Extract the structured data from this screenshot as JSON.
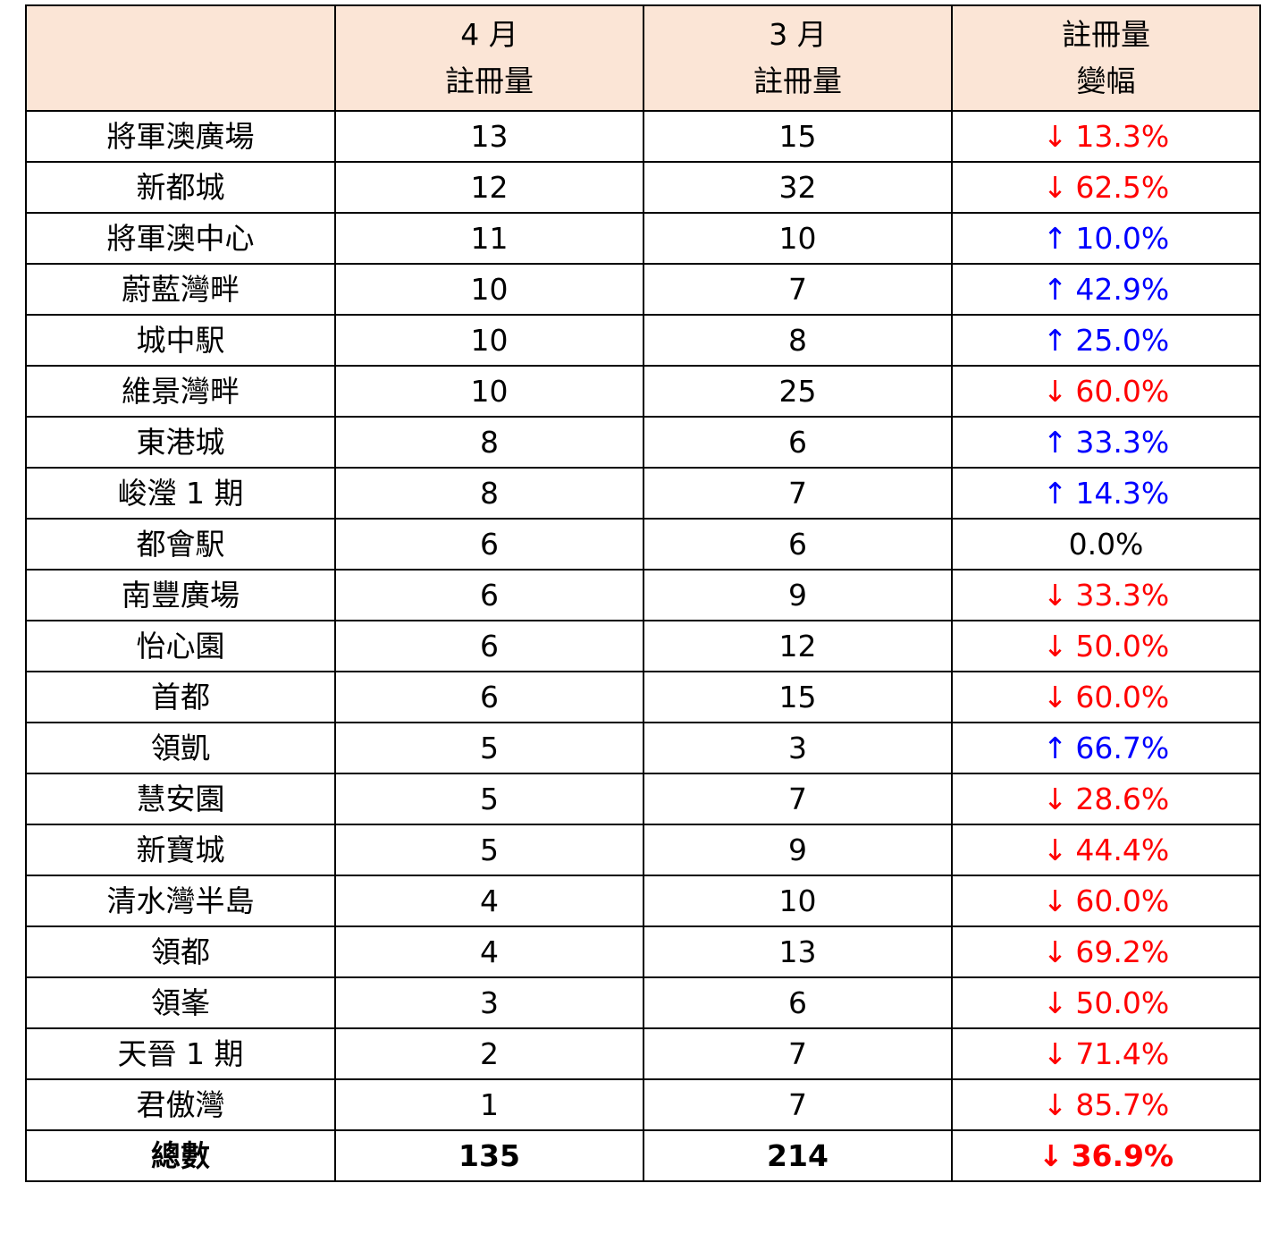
{
  "table": {
    "title_semantic": "monthly-registration-volume-table",
    "header": {
      "blank": "",
      "col_apr": {
        "line1": "4 月",
        "line2": "註冊量"
      },
      "col_mar": {
        "line1": "3 月",
        "line2": "註冊量"
      },
      "col_change": {
        "line1": "註冊量",
        "line2": "變幅"
      }
    },
    "rows": [
      {
        "name": "將軍澳廣場",
        "apr": "13",
        "mar": "15",
        "arrow": "↓",
        "pct": "13.3%",
        "trend": "down"
      },
      {
        "name": "新都城",
        "apr": "12",
        "mar": "32",
        "arrow": "↓",
        "pct": "62.5%",
        "trend": "down"
      },
      {
        "name": "將軍澳中心",
        "apr": "11",
        "mar": "10",
        "arrow": "↑",
        "pct": "10.0%",
        "trend": "up"
      },
      {
        "name": "蔚藍灣畔",
        "apr": "10",
        "mar": "7",
        "arrow": "↑",
        "pct": "42.9%",
        "trend": "up"
      },
      {
        "name": "城中駅",
        "apr": "10",
        "mar": "8",
        "arrow": "↑",
        "pct": "25.0%",
        "trend": "up"
      },
      {
        "name": "維景灣畔",
        "apr": "10",
        "mar": "25",
        "arrow": "↓",
        "pct": "60.0%",
        "trend": "down"
      },
      {
        "name": "東港城",
        "apr": "8",
        "mar": "6",
        "arrow": "↑",
        "pct": "33.3%",
        "trend": "up"
      },
      {
        "name": "峻瀅 1 期",
        "apr": "8",
        "mar": "7",
        "arrow": "↑",
        "pct": "14.3%",
        "trend": "up"
      },
      {
        "name": "都會駅",
        "apr": "6",
        "mar": "6",
        "arrow": "",
        "pct": "0.0%",
        "trend": "none"
      },
      {
        "name": "南豐廣場",
        "apr": "6",
        "mar": "9",
        "arrow": "↓",
        "pct": "33.3%",
        "trend": "down"
      },
      {
        "name": "怡心園",
        "apr": "6",
        "mar": "12",
        "arrow": "↓",
        "pct": "50.0%",
        "trend": "down"
      },
      {
        "name": "首都",
        "apr": "6",
        "mar": "15",
        "arrow": "↓",
        "pct": "60.0%",
        "trend": "down"
      },
      {
        "name": "領凱",
        "apr": "5",
        "mar": "3",
        "arrow": "↑",
        "pct": "66.7%",
        "trend": "up"
      },
      {
        "name": "慧安園",
        "apr": "5",
        "mar": "7",
        "arrow": "↓",
        "pct": "28.6%",
        "trend": "down"
      },
      {
        "name": "新寶城",
        "apr": "5",
        "mar": "9",
        "arrow": "↓",
        "pct": "44.4%",
        "trend": "down"
      },
      {
        "name": "清水灣半島",
        "apr": "4",
        "mar": "10",
        "arrow": "↓",
        "pct": "60.0%",
        "trend": "down"
      },
      {
        "name": "領都",
        "apr": "4",
        "mar": "13",
        "arrow": "↓",
        "pct": "69.2%",
        "trend": "down"
      },
      {
        "name": "領峯",
        "apr": "3",
        "mar": "6",
        "arrow": "↓",
        "pct": "50.0%",
        "trend": "down"
      },
      {
        "name": "天晉 1 期",
        "apr": "2",
        "mar": "7",
        "arrow": "↓",
        "pct": "71.4%",
        "trend": "down"
      },
      {
        "name": "君傲灣",
        "apr": "1",
        "mar": "7",
        "arrow": "↓",
        "pct": "85.7%",
        "trend": "down"
      }
    ],
    "total": {
      "name": "總數",
      "apr": "135",
      "mar": "214",
      "arrow": "↓",
      "pct": "36.9%",
      "trend": "down"
    }
  },
  "colors": {
    "header_bg": "#FBE5D6",
    "down": "#FF0000",
    "up": "#0000FF",
    "neutral": "#000000",
    "border": "#000000"
  }
}
